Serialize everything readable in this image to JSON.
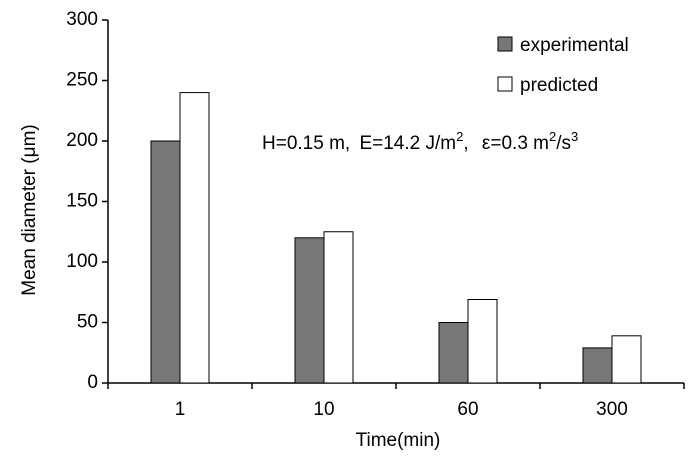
{
  "chart_data": {
    "type": "bar",
    "categories": [
      "1",
      "10",
      "60",
      "300"
    ],
    "series": [
      {
        "name": "experimental",
        "values": [
          200,
          120,
          50,
          29
        ],
        "color": "#777777"
      },
      {
        "name": "predicted",
        "values": [
          240,
          125,
          69,
          39
        ],
        "color": "#ffffff"
      }
    ],
    "xlabel": "Time(min)",
    "ylabel": "Mean diameter (μm)",
    "ylim": [
      0,
      300
    ],
    "yticks": [
      "0",
      "50",
      "100",
      "150",
      "200",
      "250",
      "300"
    ],
    "grid": false,
    "legend_position": "top-right",
    "annotation": {
      "h_text": "H=0.15 m,",
      "e_text": "E=14.2 J/m",
      "e_sup": "2",
      "eps_text": "ε=0.3 m",
      "eps_sup1": "2",
      "eps_mid": "/s",
      "eps_sup2": "3"
    }
  }
}
